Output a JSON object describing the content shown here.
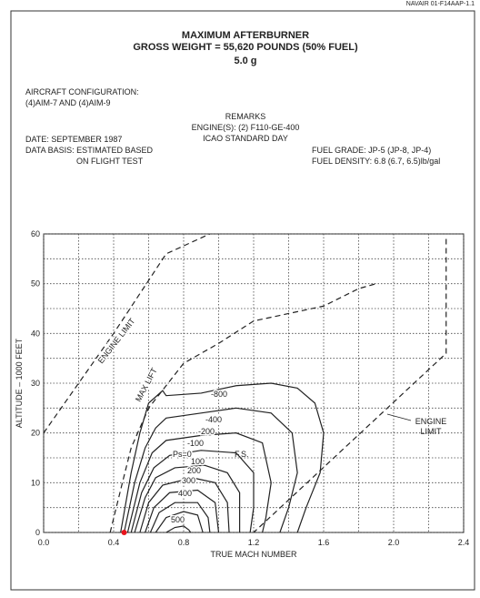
{
  "page_header": "NAVAIR 01-F14AAP-1.1",
  "chart_data": {
    "type": "line",
    "title": [
      "MAXIMUM AFTERBURNER",
      "GROSS WEIGHT = 55,620 POUNDS (50% FUEL)",
      "5.0 g"
    ],
    "configuration": [
      "AIRCRAFT CONFIGURATION:",
      "(4)AIM-7 AND (4)AIM-9"
    ],
    "remarks": [
      "REMARKS",
      "ENGINE(S): (2) F110-GE-400",
      "ICAO STANDARD DAY"
    ],
    "date": [
      "DATE: SEPTEMBER 1987",
      "DATA BASIS: ESTIMATED BASED",
      "ON FLIGHT TEST"
    ],
    "fuel": [
      "FUEL GRADE: JP-5 (JP-8, JP-4)",
      "FUEL DENSITY: 6.8 (6.7, 6.5)lb/gal"
    ],
    "xlabel": "TRUE MACH NUMBER",
    "ylabel": "ALTITUDE – 1000 FEET",
    "xlim": [
      0,
      2.4
    ],
    "ylim": [
      0,
      60
    ],
    "xticks": [
      {
        "value": 0,
        "label": "0.0"
      },
      0.4,
      0.8,
      1.2,
      1.6,
      {
        "value": 2,
        "label": "2.0"
      },
      2.4
    ],
    "xminor": [
      0.2,
      0.6,
      1.0,
      1.4,
      1.8,
      2.2
    ],
    "yticks": [
      0,
      10,
      20,
      30,
      40,
      50,
      60
    ],
    "yminor": [
      5,
      15,
      25,
      35,
      45,
      55
    ],
    "grid": true,
    "annotation": "F.S.",
    "marker": {
      "x": 0.46,
      "y": 0,
      "color": "#e8141c"
    },
    "series": [
      {
        "name": "ENGINE LIMIT",
        "dash": true,
        "x": [
          0,
          0.2,
          0.4,
          0.55,
          0.7,
          0.95
        ],
        "y": [
          20,
          30,
          40,
          48,
          56,
          60
        ]
      },
      {
        "name": "MAX LIFT",
        "dash": true,
        "x": [
          0.38,
          0.45,
          0.5,
          0.6,
          0.8,
          1.0,
          1.2,
          1.4,
          1.6,
          1.8,
          1.9
        ],
        "y": [
          0,
          10,
          17,
          25,
          34,
          38,
          42.5,
          44,
          45.5,
          49,
          50
        ]
      },
      {
        "name": "ENGINE LIMIT",
        "dash": true,
        "x": [
          2.3,
          2.3,
          1.2
        ],
        "y": [
          59,
          36,
          0
        ]
      },
      {
        "name": "-800",
        "dash": false,
        "x": [
          0.44,
          0.5,
          0.55,
          0.6,
          0.68,
          0.7,
          0.9,
          1.1,
          1.3,
          1.45,
          1.55,
          1.6,
          1.58,
          1.5,
          1.45
        ],
        "y": [
          0,
          12,
          20,
          26,
          28.5,
          27.5,
          28,
          29.5,
          30,
          29,
          26,
          20,
          12,
          5,
          0
        ]
      },
      {
        "name": "-400",
        "dash": false,
        "x": [
          0.46,
          0.52,
          0.58,
          0.64,
          0.7,
          0.9,
          1.1,
          1.3,
          1.42,
          1.45,
          1.4,
          1.35
        ],
        "y": [
          0,
          10,
          17,
          21,
          23,
          24,
          25,
          24,
          20,
          12,
          5,
          0
        ]
      },
      {
        "name": "-200",
        "dash": false,
        "x": [
          0.48,
          0.55,
          0.62,
          0.7,
          0.9,
          1.1,
          1.25,
          1.3,
          1.27,
          1.25
        ],
        "y": [
          0,
          10,
          16,
          18.5,
          19.5,
          20,
          18,
          10,
          3,
          0
        ]
      },
      {
        "name": "-100",
        "dash": false,
        "x": [
          0.5,
          0.56,
          0.63,
          0.72,
          0.9,
          1.1,
          1.2,
          1.2,
          1.18
        ],
        "y": [
          0,
          8,
          13,
          15.5,
          16.5,
          16,
          12,
          5,
          0
        ]
      },
      {
        "name": "Ps=0",
        "dash": false,
        "x": [
          0.52,
          0.58,
          0.64,
          0.75,
          0.92,
          1.05,
          1.12,
          1.12
        ],
        "y": [
          0,
          7,
          11,
          13,
          13.5,
          12,
          8,
          0
        ]
      },
      {
        "name": "100",
        "dash": false,
        "x": [
          0.55,
          0.6,
          0.68,
          0.85,
          0.98,
          1.05,
          1.06
        ],
        "y": [
          0,
          6,
          9.5,
          11,
          10,
          6,
          0
        ]
      },
      {
        "name": "200",
        "dash": false,
        "x": [
          0.58,
          0.63,
          0.72,
          0.88,
          0.98,
          1.0
        ],
        "y": [
          0,
          5,
          8,
          8.5,
          6,
          0
        ]
      },
      {
        "name": "300",
        "dash": false,
        "x": [
          0.61,
          0.66,
          0.75,
          0.88,
          0.94,
          0.95
        ],
        "y": [
          0,
          4,
          6,
          6,
          3,
          0
        ]
      },
      {
        "name": "400",
        "dash": false,
        "x": [
          0.64,
          0.7,
          0.8,
          0.88,
          0.91
        ],
        "y": [
          0,
          3,
          4.2,
          3.5,
          0
        ]
      },
      {
        "name": "500",
        "dash": false,
        "x": [
          0.7,
          0.75,
          0.8,
          0.83,
          0.84
        ],
        "y": [
          0,
          1,
          1.3,
          0.5,
          0
        ]
      }
    ]
  }
}
